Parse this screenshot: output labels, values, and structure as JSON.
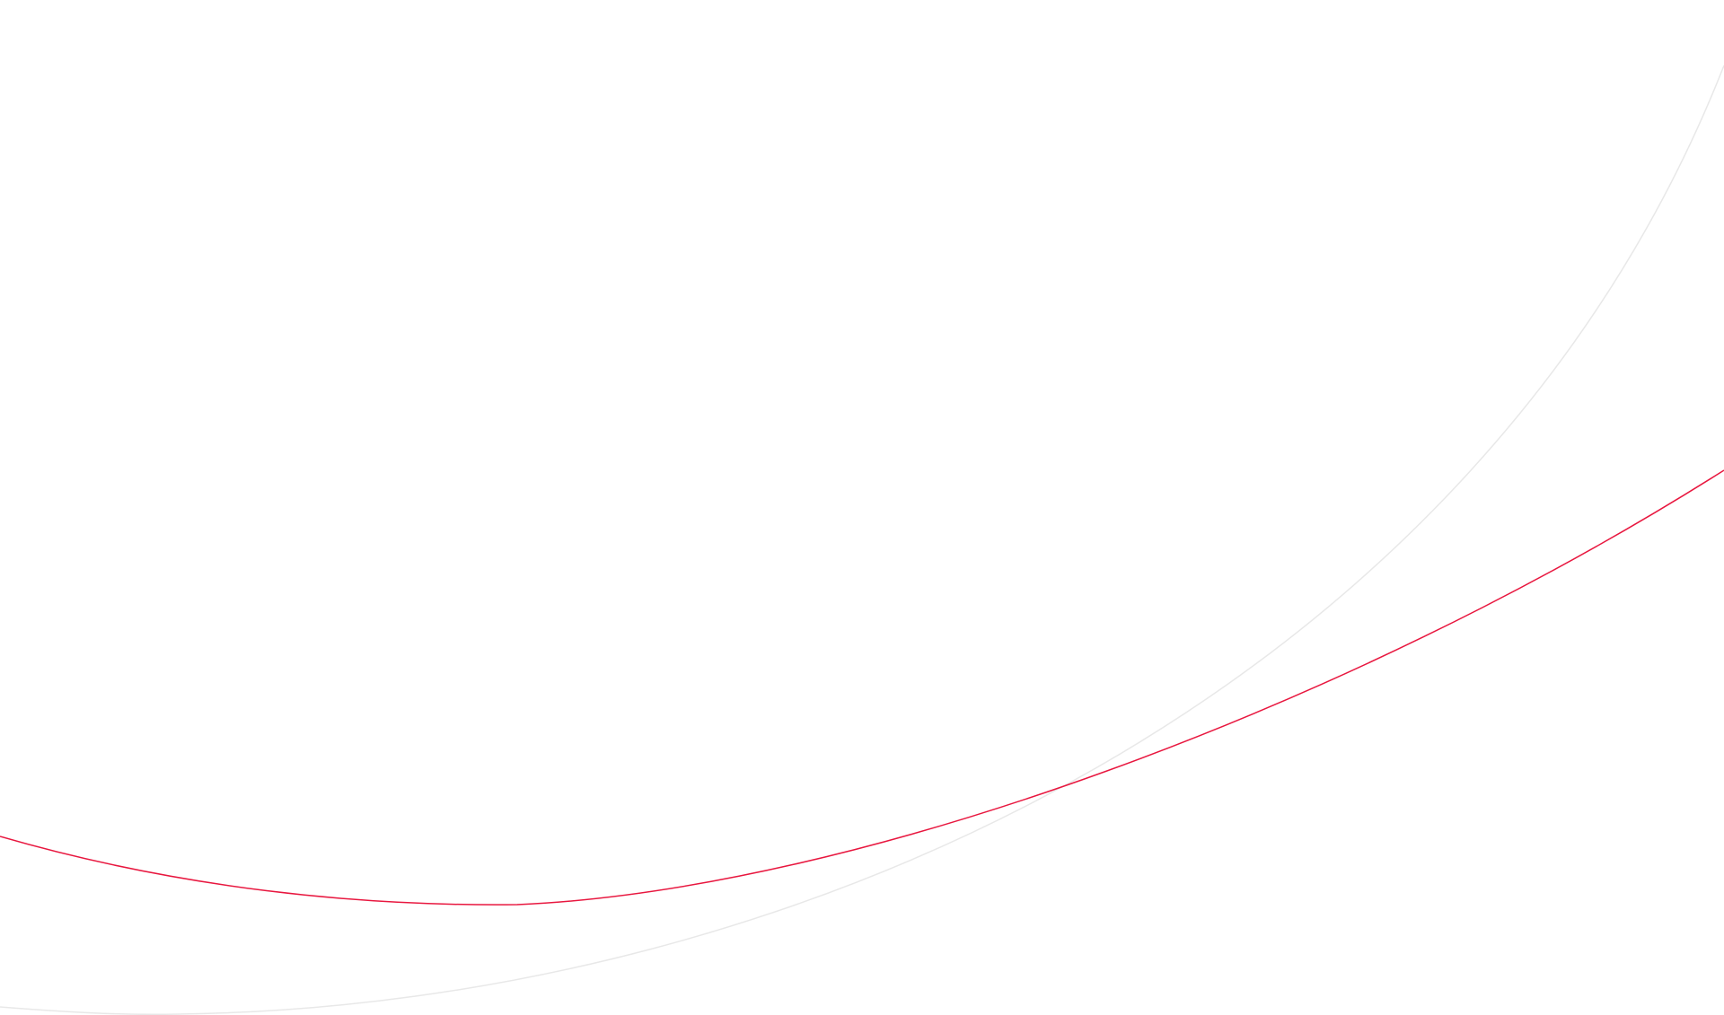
{
  "background": {
    "page_color": "#ffffff",
    "curves": [
      {
        "name": "gray-arc",
        "color": "#e8e8e8"
      },
      {
        "name": "red-arc",
        "color": "#e8173f"
      }
    ]
  }
}
